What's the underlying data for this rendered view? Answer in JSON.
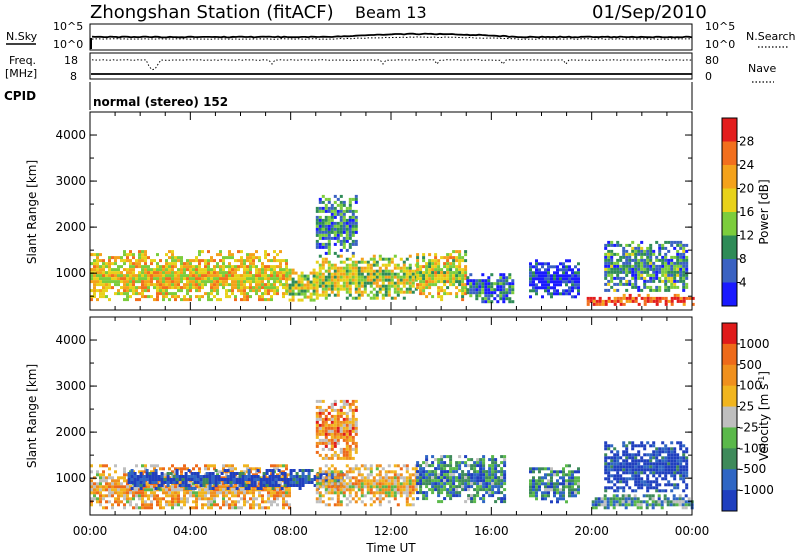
{
  "header": {
    "station": "Zhongshan Station (fitACF)",
    "beam": "Beam 13",
    "date": "01/Sep/2010"
  },
  "top_panels": {
    "nsky_label": "N.Sky",
    "nsky_ticks": [
      "10^5",
      "10^0"
    ],
    "nsearch_label": "N.Search",
    "freq_label_line1": "Freq.",
    "freq_label_line2": "[MHz]",
    "freq_ticks": [
      "18",
      "8"
    ],
    "nave_label": "Nave",
    "nave_ticks": [
      "80",
      "0"
    ],
    "cpid_label": "CPID",
    "cpid_text": "normal (stereo) 152"
  },
  "chart_data": [
    {
      "type": "heatmap",
      "name": "power",
      "xlabel": "",
      "ylabel": "Slant Range [km]",
      "xlim": [
        0,
        24
      ],
      "ylim": [
        200,
        4500
      ],
      "y_ticks": [
        "1000",
        "2000",
        "3000",
        "4000"
      ],
      "colorbar": {
        "label": "Power [dB]",
        "ticks": [
          "4",
          "8",
          "12",
          "16",
          "20",
          "24",
          "28"
        ],
        "colors": [
          "#1a1aff",
          "#3a62c2",
          "#2e8b57",
          "#7ccd3c",
          "#e8d21a",
          "#f4a21b",
          "#f26f1d",
          "#e31d1d"
        ]
      },
      "regions": [
        {
          "t": [
            0.0,
            7.8
          ],
          "r": [
            400,
            1500
          ],
          "level": 0.6
        },
        {
          "t": [
            7.8,
            9.0
          ],
          "r": [
            400,
            1100
          ],
          "level": 0.5
        },
        {
          "t": [
            9.0,
            10.6
          ],
          "r": [
            1400,
            2700
          ],
          "level": 0.25
        },
        {
          "t": [
            9.0,
            13.0
          ],
          "r": [
            450,
            1400
          ],
          "level": 0.5
        },
        {
          "t": [
            13.0,
            15.0
          ],
          "r": [
            450,
            1500
          ],
          "level": 0.55
        },
        {
          "t": [
            15.0,
            16.8
          ],
          "r": [
            350,
            1000
          ],
          "level": 0.2
        },
        {
          "t": [
            17.5,
            19.5
          ],
          "r": [
            500,
            1300
          ],
          "level": 0.12
        },
        {
          "t": [
            19.8,
            24.0
          ],
          "r": [
            350,
            550
          ],
          "level": 0.85
        },
        {
          "t": [
            20.5,
            23.8
          ],
          "r": [
            600,
            1700
          ],
          "level": 0.3
        }
      ]
    },
    {
      "type": "heatmap",
      "name": "velocity",
      "xlabel": "Time UT",
      "ylabel": "Slant Range [km]",
      "xlim": [
        0,
        24
      ],
      "ylim": [
        200,
        4500
      ],
      "x_ticks": [
        "00:00",
        "04:00",
        "08:00",
        "12:00",
        "16:00",
        "20:00",
        "00:00"
      ],
      "y_ticks": [
        "1000",
        "2000",
        "3000",
        "4000"
      ],
      "colorbar": {
        "label": "Velocity [m s^-1]",
        "ticks": [
          "1000",
          "500",
          "100",
          "25",
          "-25",
          "-100",
          "-500",
          "-1000"
        ],
        "colors": [
          "#1f3fbf",
          "#2f66c4",
          "#3e8a5a",
          "#5ab84a",
          "#bfbfbf",
          "#f1b51f",
          "#f0901d",
          "#ee6a1a",
          "#e01b1b"
        ]
      },
      "regions": [
        {
          "t": [
            0.0,
            8.0
          ],
          "r": [
            350,
            1300
          ],
          "level": 0.65
        },
        {
          "t": [
            1.5,
            10.0
          ],
          "r": [
            800,
            1200
          ],
          "level": 0.05
        },
        {
          "t": [
            9.0,
            10.6
          ],
          "r": [
            1400,
            2700
          ],
          "level": 0.7
        },
        {
          "t": [
            9.0,
            13.0
          ],
          "r": [
            450,
            1300
          ],
          "level": 0.6
        },
        {
          "t": [
            13.0,
            16.5
          ],
          "r": [
            500,
            1500
          ],
          "level": 0.25
        },
        {
          "t": [
            17.5,
            19.5
          ],
          "r": [
            500,
            1300
          ],
          "level": 0.25
        },
        {
          "t": [
            20.0,
            24.0
          ],
          "r": [
            350,
            650
          ],
          "level": 0.3
        },
        {
          "t": [
            20.5,
            23.8
          ],
          "r": [
            700,
            1800
          ],
          "level": 0.05
        }
      ]
    }
  ]
}
